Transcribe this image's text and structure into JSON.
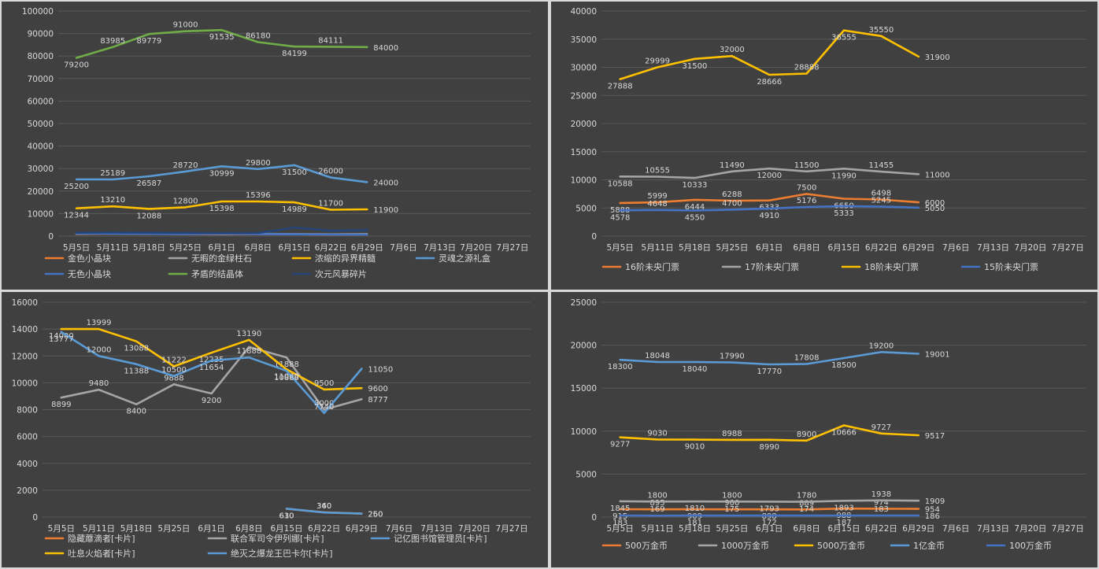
{
  "chart_data": [
    {
      "type": "line",
      "categories": [
        "5月5日",
        "5月11日",
        "5月18日",
        "5月25日",
        "6月1日",
        "6月8日",
        "6月15日",
        "6月22日",
        "6月29日",
        "7月6日",
        "7月13日",
        "7月20日",
        "7月27日"
      ],
      "ylim": [
        0,
        100000
      ],
      "yticks": [
        0,
        10000,
        20000,
        30000,
        40000,
        50000,
        60000,
        70000,
        80000,
        90000,
        100000
      ],
      "grid": true,
      "legend_position": "bottom",
      "series": [
        {
          "name": "金色小晶块",
          "color": "#ed7d31",
          "values": [
            1000,
            1100,
            1000,
            900,
            800,
            900,
            800,
            700,
            800,
            null,
            null,
            null,
            null
          ],
          "labels": [
            false,
            false,
            false,
            false,
            false,
            false,
            false,
            false,
            false,
            false,
            false,
            false,
            false
          ]
        },
        {
          "name": "无暇的金绿柱石",
          "color": "#a5a5a5",
          "values": [
            1100,
            1200,
            1100,
            1000,
            900,
            1000,
            900,
            800,
            900,
            null,
            null,
            null,
            null
          ],
          "labels": [
            false,
            false,
            false,
            false,
            false,
            false,
            false,
            false,
            false,
            false,
            false,
            false,
            false
          ]
        },
        {
          "name": "浓缩的异界精髓",
          "color": "#ffc000",
          "values": [
            12344,
            13210,
            12088,
            12800,
            15398,
            15396,
            14989,
            11700,
            11900,
            null,
            null,
            null,
            null
          ],
          "labels": [
            true,
            true,
            true,
            true,
            true,
            true,
            true,
            true,
            true,
            false,
            false,
            false,
            false
          ]
        },
        {
          "name": "灵魂之源礼盒",
          "color": "#5b9bd5",
          "values": [
            25200,
            25189,
            26587,
            28720,
            30999,
            29800,
            31500,
            26000,
            24000,
            null,
            null,
            null,
            null
          ],
          "labels": [
            true,
            true,
            true,
            true,
            true,
            true,
            true,
            true,
            true,
            false,
            false,
            false,
            false
          ]
        },
        {
          "name": "无色小晶块",
          "color": "#4472c4",
          "values": [
            1200,
            1100,
            1000,
            900,
            1000,
            900,
            800,
            700,
            700,
            null,
            null,
            null,
            null
          ],
          "labels": [
            false,
            false,
            false,
            false,
            false,
            false,
            false,
            false,
            false,
            false,
            false,
            false,
            false
          ]
        },
        {
          "name": "矛盾的结晶体",
          "color": "#70ad47",
          "values": [
            79200,
            83985,
            89779,
            91000,
            91535,
            86180,
            84199,
            84111,
            84000,
            null,
            null,
            null,
            null
          ],
          "labels": [
            true,
            true,
            true,
            true,
            true,
            true,
            true,
            true,
            true,
            false,
            false,
            false,
            false
          ]
        },
        {
          "name": "次元风暴碎片",
          "color": "#264478",
          "values": [
            1500,
            1600,
            1500,
            1400,
            1300,
            1400,
            3780,
            2420,
            2700,
            null,
            null,
            null,
            null
          ],
          "labels": [
            false,
            false,
            false,
            false,
            false,
            false,
            false,
            false,
            false,
            false,
            false,
            false,
            false
          ]
        }
      ]
    },
    {
      "type": "line",
      "categories": [
        "5月5日",
        "5月11日",
        "5月18日",
        "5月25日",
        "6月1日",
        "6月8日",
        "6月15日",
        "6月22日",
        "6月29日",
        "7月6日",
        "7月13日",
        "7月20日",
        "7月27日"
      ],
      "ylim": [
        0,
        40000
      ],
      "yticks": [
        0,
        5000,
        10000,
        15000,
        20000,
        25000,
        30000,
        35000,
        40000
      ],
      "grid": true,
      "legend_position": "bottom",
      "series": [
        {
          "name": "16阶未央门票",
          "color": "#ed7d31",
          "values": [
            5888,
            5999,
            6444,
            6288,
            6333,
            7500,
            6650,
            6498,
            6000,
            null,
            null,
            null,
            null
          ],
          "labels": [
            true,
            true,
            true,
            true,
            true,
            true,
            true,
            true,
            true,
            false,
            false,
            false,
            false
          ]
        },
        {
          "name": "17阶未央门票",
          "color": "#a5a5a5",
          "values": [
            10588,
            10555,
            10333,
            11490,
            12000,
            11500,
            11990,
            11455,
            11000,
            null,
            null,
            null,
            null
          ],
          "labels": [
            true,
            true,
            true,
            true,
            true,
            true,
            true,
            true,
            true,
            false,
            false,
            false,
            false
          ]
        },
        {
          "name": "18阶未央门票",
          "color": "#ffc000",
          "values": [
            27888,
            29999,
            31500,
            32000,
            28666,
            28888,
            36555,
            35550,
            31900,
            null,
            null,
            null,
            null
          ],
          "labels": [
            true,
            true,
            true,
            true,
            true,
            true,
            true,
            true,
            true,
            false,
            false,
            false,
            false
          ]
        },
        {
          "name": "15阶未央门票",
          "color": "#4472c4",
          "values": [
            4578,
            4648,
            4550,
            4700,
            4910,
            5176,
            5333,
            5245,
            5050,
            null,
            null,
            null,
            null
          ],
          "labels": [
            true,
            true,
            true,
            true,
            true,
            true,
            true,
            true,
            true,
            false,
            false,
            false,
            false
          ]
        }
      ]
    },
    {
      "type": "line",
      "categories": [
        "5月5日",
        "5月11日",
        "5月18日",
        "5月25日",
        "6月1日",
        "6月8日",
        "6月15日",
        "6月22日",
        "6月29日",
        "7月6日",
        "7月13日",
        "7月20日",
        "7月27日"
      ],
      "ylim": [
        0,
        16000
      ],
      "yticks": [
        0,
        2000,
        4000,
        6000,
        8000,
        10000,
        12000,
        14000,
        16000
      ],
      "grid": true,
      "legend_position": "bottom",
      "series": [
        {
          "name": "隐藏蘼滴者[卡片]",
          "color": "#ed7d31",
          "values": [
            null,
            null,
            null,
            null,
            null,
            null,
            610,
            360,
            250,
            null,
            null,
            null,
            null
          ],
          "labels": [
            false,
            false,
            false,
            false,
            false,
            false,
            true,
            true,
            true,
            false,
            false,
            false,
            false
          ]
        },
        {
          "name": "联合军司令伊列娜[卡片]",
          "color": "#a5a5a5",
          "values": [
            8899,
            9480,
            8400,
            9888,
            9200,
            12666,
            11888,
            8000,
            8777,
            null,
            null,
            null,
            null
          ],
          "labels": [
            true,
            true,
            true,
            true,
            true,
            false,
            true,
            true,
            true,
            false,
            false,
            false,
            false
          ]
        },
        {
          "name": "记亿图书馆管理员[卡片]",
          "color": "#5b9bd5",
          "values": [
            null,
            null,
            null,
            null,
            null,
            null,
            630,
            340,
            260,
            null,
            null,
            null,
            null
          ],
          "labels": [
            false,
            false,
            false,
            false,
            false,
            false,
            true,
            true,
            true,
            false,
            false,
            false,
            false
          ]
        },
        {
          "name": "吐息火焰者[卡片]",
          "color": "#ffc000",
          "values": [
            14000,
            13999,
            13088,
            11222,
            12235,
            13190,
            11000,
            9500,
            9600,
            null,
            null,
            null,
            null
          ],
          "labels": [
            true,
            true,
            true,
            true,
            true,
            true,
            true,
            true,
            true,
            false,
            false,
            false,
            false
          ]
        },
        {
          "name": "绝灭之爆龙王巴卡尔[卡片]",
          "color": "#5b9bd5",
          "values": [
            13777,
            12000,
            11388,
            10500,
            11654,
            11888,
            10888,
            7740,
            11050,
            null,
            null,
            null,
            null
          ],
          "labels": [
            true,
            true,
            true,
            true,
            true,
            true,
            true,
            true,
            true,
            false,
            false,
            false,
            false
          ]
        }
      ]
    },
    {
      "type": "line",
      "categories": [
        "5月5日",
        "5月11日",
        "5月18日",
        "5月25日",
        "6月1日",
        "6月8日",
        "6月15日",
        "6月22日",
        "6月29日",
        "7月6日",
        "7月13日",
        "7月20日",
        "7月27日"
      ],
      "ylim": [
        0,
        25000
      ],
      "yticks": [
        0,
        5000,
        10000,
        15000,
        20000,
        25000
      ],
      "grid": true,
      "legend_position": "bottom",
      "series": [
        {
          "name": "500万金币",
          "color": "#ed7d31",
          "values": [
            915,
            895,
            909,
            900,
            898,
            889,
            988,
            974,
            954,
            null,
            null,
            null,
            null
          ],
          "labels": [
            true,
            true,
            true,
            true,
            true,
            true,
            true,
            true,
            true,
            false,
            false,
            false,
            false
          ]
        },
        {
          "name": "1000万金币",
          "color": "#a5a5a5",
          "values": [
            1845,
            1800,
            1810,
            1800,
            1793,
            1780,
            1893,
            1938,
            1909,
            null,
            null,
            null,
            null
          ],
          "labels": [
            true,
            true,
            true,
            true,
            true,
            true,
            true,
            true,
            true,
            false,
            false,
            false,
            false
          ]
        },
        {
          "name": "5000万金币",
          "color": "#ffc000",
          "values": [
            9277,
            9030,
            9010,
            8988,
            8990,
            8900,
            10666,
            9727,
            9517,
            null,
            null,
            null,
            null
          ],
          "labels": [
            true,
            true,
            true,
            true,
            true,
            true,
            true,
            true,
            true,
            false,
            false,
            false,
            false
          ]
        },
        {
          "name": "1亿金币",
          "color": "#5b9bd5",
          "values": [
            18300,
            18048,
            18040,
            17990,
            17770,
            17808,
            18500,
            19200,
            19001,
            null,
            null,
            null,
            null
          ],
          "labels": [
            true,
            true,
            true,
            true,
            true,
            true,
            true,
            true,
            true,
            false,
            false,
            false,
            false
          ]
        },
        {
          "name": "100万金币",
          "color": "#4472c4",
          "values": [
            183,
            169,
            181,
            175,
            172,
            174,
            187,
            183,
            186,
            null,
            null,
            null,
            null
          ],
          "labels": [
            true,
            true,
            true,
            true,
            true,
            true,
            true,
            true,
            true,
            false,
            false,
            false,
            false
          ]
        }
      ]
    }
  ]
}
